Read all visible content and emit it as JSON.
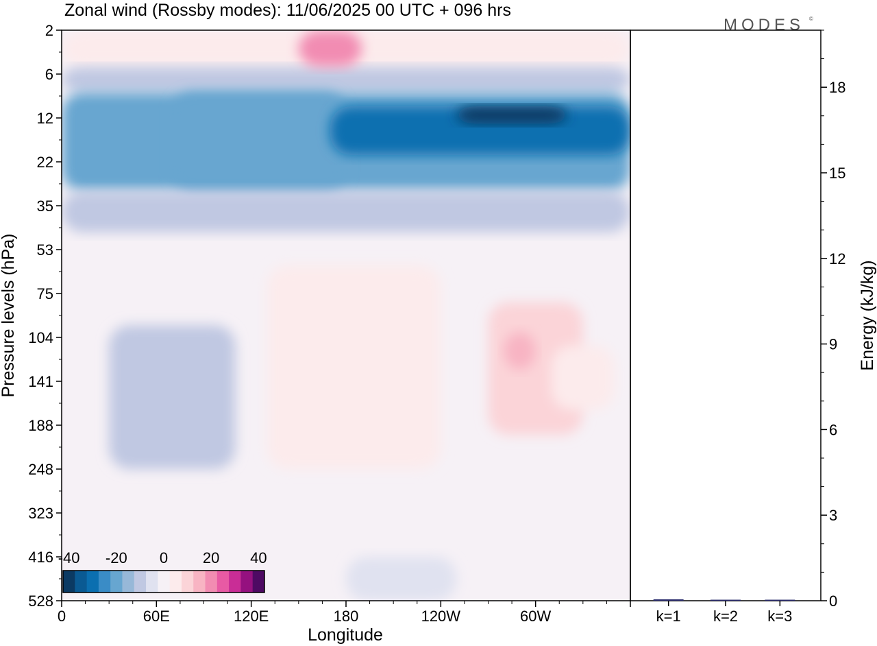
{
  "logo": "MODES",
  "chart_data": [
    {
      "type": "heatmap",
      "title": "Zonal wind (Rossby modes):  11/06/2025  00 UTC  + 096 hrs",
      "xlabel": "Longitude",
      "ylabel": "Pressure levels (hPa)",
      "x_ticks": [
        "0",
        "60E",
        "120E",
        "180",
        "120W",
        "60W"
      ],
      "y_ticks": [
        "2",
        "6",
        "12",
        "22",
        "35",
        "53",
        "75",
        "104",
        "141",
        "188",
        "248",
        "323",
        "416",
        "528"
      ],
      "colorbar": {
        "tick_labels": [
          "-40",
          "-20",
          "0",
          "20",
          "40"
        ],
        "levels": [
          -40,
          -35,
          -30,
          -25,
          -20,
          -15,
          -10,
          -5,
          0,
          5,
          10,
          15,
          20,
          25,
          30,
          35,
          40
        ],
        "colors": [
          "#0b3a63",
          "#0a5a93",
          "#0b6fb0",
          "#3a8cc6",
          "#67a6d0",
          "#97b8d8",
          "#c0c8e2",
          "#e0e2f0",
          "#f6f1f6",
          "#fcebec",
          "#fbd4d8",
          "#f8b4c3",
          "#f28cb2",
          "#e85aa4",
          "#c92d96",
          "#95117f",
          "#4e0a63"
        ]
      },
      "fields": [
        {
          "lon": [
            0,
            360
          ],
          "levels": [
            "2",
            "528"
          ],
          "value": 0
        },
        {
          "lon": [
            0,
            360
          ],
          "levels": [
            "2",
            "5"
          ],
          "value": 6
        },
        {
          "lon": [
            0,
            360
          ],
          "levels": [
            "5",
            "8"
          ],
          "value": -12
        },
        {
          "lon": [
            0,
            360
          ],
          "levels": [
            "8",
            "30"
          ],
          "value": -22
        },
        {
          "lon": [
            30,
            110
          ],
          "levels": [
            "95",
            "248"
          ],
          "value": -9
        },
        {
          "lon": [
            70,
            180
          ],
          "levels": [
            "8",
            "30"
          ],
          "value": -20
        },
        {
          "lon": [
            170,
            360
          ],
          "levels": [
            "10",
            "20"
          ],
          "value": -30
        },
        {
          "lon": [
            250,
            320
          ],
          "levels": [
            "10",
            "13"
          ],
          "value": -38
        },
        {
          "lon": [
            0,
            360
          ],
          "levels": [
            "30",
            "45"
          ],
          "value": -10
        },
        {
          "lon": [
            130,
            240
          ],
          "levels": [
            "60",
            "248"
          ],
          "value": 7
        },
        {
          "lon": [
            270,
            330
          ],
          "levels": [
            "80",
            "200"
          ],
          "value": 8
        },
        {
          "lon": [
            280,
            300
          ],
          "levels": [
            "100",
            "130"
          ],
          "value": 14
        },
        {
          "lon": [
            310,
            350
          ],
          "levels": [
            "110",
            "170"
          ],
          "value": 7
        },
        {
          "lon": [
            150,
            190
          ],
          "levels": [
            "2",
            "5"
          ],
          "value": 18
        },
        {
          "lon": [
            180,
            250
          ],
          "levels": [
            "416",
            "528"
          ],
          "value": -4
        }
      ]
    },
    {
      "type": "bar",
      "categories": [
        "k=1",
        "k=2",
        "k=3"
      ],
      "values": [
        0.05,
        0.03,
        0.02
      ],
      "ylabel": "Energy (kJ/kg)",
      "y_ticks": [
        "0",
        "3",
        "6",
        "9",
        "12",
        "15",
        "18"
      ],
      "ylim": [
        0,
        20
      ],
      "bar_color": "#2b2d6e"
    }
  ]
}
